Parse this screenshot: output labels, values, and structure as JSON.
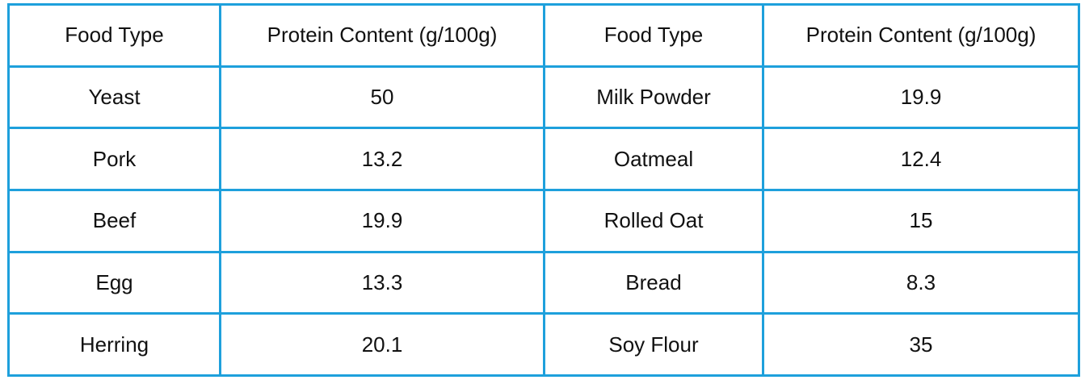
{
  "table": {
    "header": [
      "Food Type",
      "Protein Content (g/100g)",
      "Food Type",
      "Protein Content (g/100g)"
    ],
    "rows": [
      [
        "Yeast",
        "50",
        "Milk Powder",
        "19.9"
      ],
      [
        "Pork",
        "13.2",
        "Oatmeal",
        "12.4"
      ],
      [
        "Beef",
        "19.9",
        "Rolled Oat",
        "15"
      ],
      [
        "Egg",
        "13.3",
        "Bread",
        "8.3"
      ],
      [
        "Herring",
        "20.1",
        "Soy Flour",
        "35"
      ]
    ]
  }
}
